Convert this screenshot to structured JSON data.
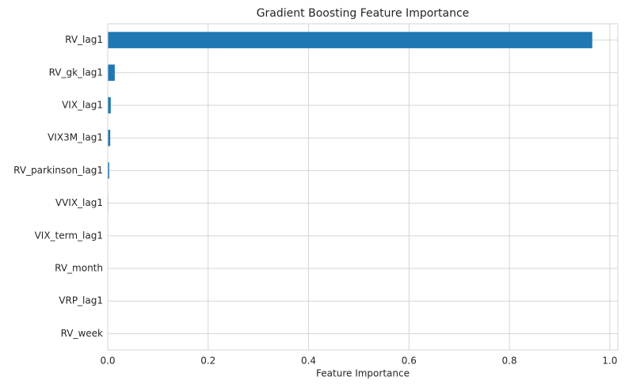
{
  "chart_data": {
    "type": "barh",
    "title": "Gradient Boosting Feature Importance",
    "x_label": "Feature Importance",
    "categories": [
      "RV_lag1",
      "RV_gk_lag1",
      "VIX_lag1",
      "VIX3M_lag1",
      "RV_parkinson_lag1",
      "VVIX_lag1",
      "VIX_term_lag1",
      "RV_month",
      "VRP_lag1",
      "RV_week"
    ],
    "values": [
      0.965,
      0.014,
      0.006,
      0.005,
      0.003,
      0.001,
      0.0008,
      0.0006,
      0.0005,
      0.0004
    ],
    "color": "#1f77b4",
    "xlim": [
      0,
      1.016
    ],
    "xticks": [
      {
        "value": 0,
        "label": "0.0"
      },
      0.2,
      0.4,
      0.6,
      0.8,
      {
        "value": 1,
        "label": "1.0"
      }
    ],
    "grid": true
  }
}
